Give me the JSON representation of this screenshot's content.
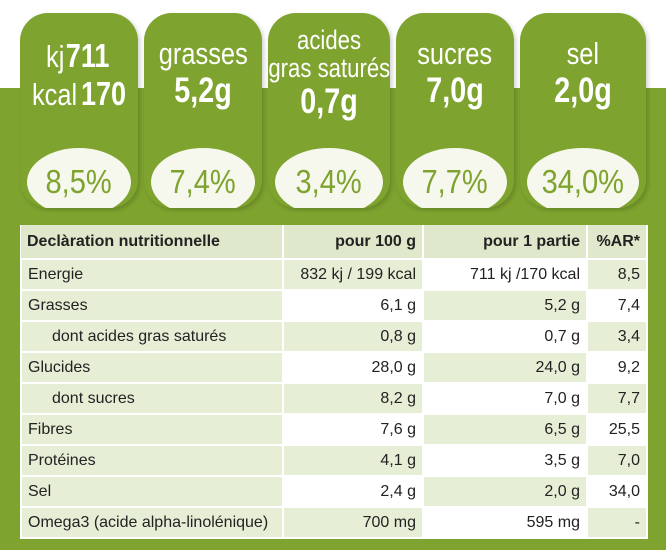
{
  "badges": [
    {
      "energy": {
        "kj_unit": "kj",
        "kj_value": "711",
        "kcal_unit": "kcal",
        "kcal_value": "170"
      },
      "percent": "8,5%"
    },
    {
      "name": "grasses",
      "value": "5,2g",
      "percent": "7,4%"
    },
    {
      "name_line1": "acides",
      "name_line2": "gras saturés",
      "value": "0,7g",
      "percent": "3,4%"
    },
    {
      "name": "sucres",
      "value": "7,0g",
      "percent": "7,7%"
    },
    {
      "name": "sel",
      "value": "2,0g",
      "percent": "34,0%"
    }
  ],
  "table": {
    "headers": [
      "Declàration nutritionnelle",
      "pour 100 g",
      "pour 1 partie",
      "%AR*"
    ],
    "rows": [
      [
        "Energie",
        "832 kj  / 199 kcal",
        "711 kj  /170 kcal",
        "8,5"
      ],
      [
        "Grasses",
        "6,1 g",
        "5,2 g",
        "7,4"
      ],
      [
        "dont acides gras saturés",
        "0,8 g",
        "0,7 g",
        "3,4"
      ],
      [
        "Glucides",
        "28,0 g",
        "24,0 g",
        "9,2"
      ],
      [
        "dont sucres",
        "8,2 g",
        "7,0 g",
        "7,7"
      ],
      [
        "Fibres",
        "7,6 g",
        "6,5 g",
        "25,5"
      ],
      [
        "Protéines",
        "4,1 g",
        "3,5 g",
        "7,0"
      ],
      [
        "Sel",
        "2,4 g",
        "2,0 g",
        "34,0"
      ],
      [
        "Omega3 (acide alpha-linolénique)",
        "700 mg",
        "595 mg",
        "-"
      ]
    ]
  },
  "colors": {
    "brand_green": "#7ea32e",
    "ellipse_bg": "#f6f8ee",
    "header_bg": "#dfe8cb",
    "row_shade": "#e7eed6"
  }
}
